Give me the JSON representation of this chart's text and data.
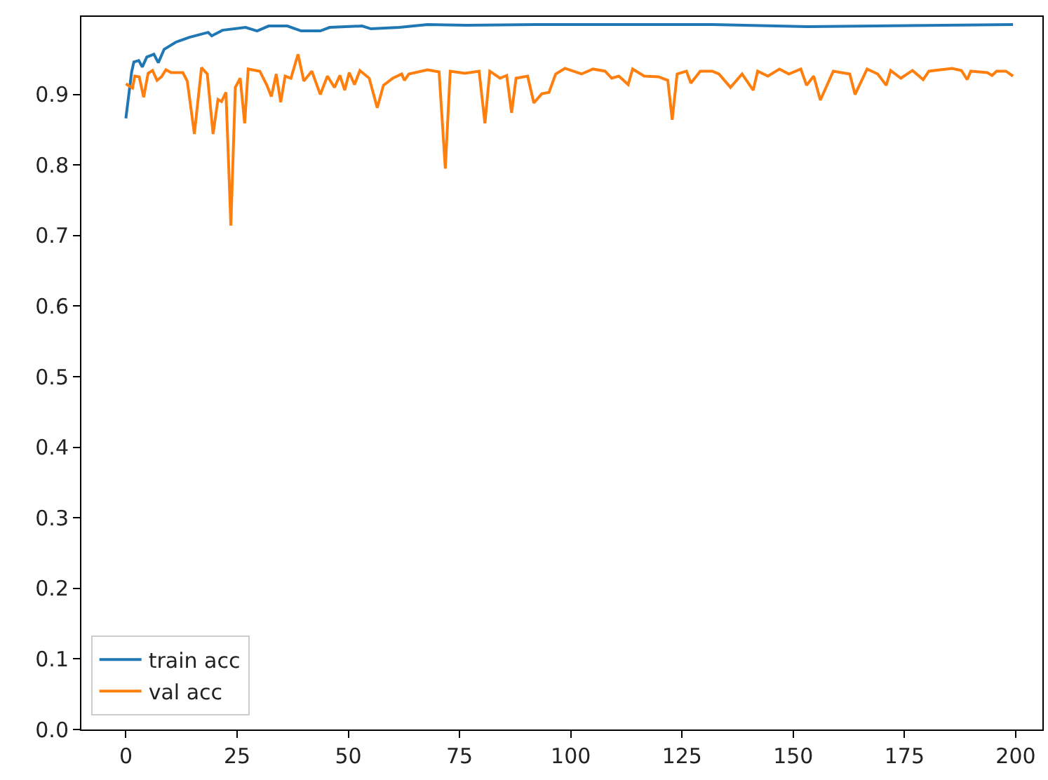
{
  "chart_data": {
    "type": "line",
    "xlim": [
      -10,
      206
    ],
    "ylim": [
      0,
      1.01
    ],
    "xticks": [
      0,
      25,
      50,
      75,
      100,
      125,
      150,
      175,
      200
    ],
    "yticks": [
      {
        "value": 0,
        "label": "0.0"
      },
      0.1,
      0.2,
      0.3,
      0.4,
      0.5,
      0.6,
      0.7,
      0.8,
      0.9
    ],
    "legend": "bottom left",
    "series": [
      {
        "name": "train acc",
        "color": "#1f77b4",
        "x": [
          0,
          1.3,
          1.8,
          2.9,
          3.7,
          4.7,
          6.3,
          7.3,
          8.6,
          11.2,
          14.3,
          18.5,
          19.3,
          21.7,
          26.9,
          29.5,
          32.1,
          36.3,
          39.4,
          43.7,
          45.8,
          53.1,
          55.1,
          61.5,
          67.8,
          76.5,
          92.2,
          131.8,
          153.2,
          199.4
        ],
        "values": [
          0.866,
          0.932,
          0.946,
          0.948,
          0.939,
          0.953,
          0.957,
          0.945,
          0.964,
          0.974,
          0.981,
          0.988,
          0.983,
          0.991,
          0.995,
          0.99,
          0.997,
          0.997,
          0.99,
          0.99,
          0.995,
          0.997,
          0.993,
          0.995,
          0.999,
          0.998,
          0.999,
          0.999,
          0.996,
          0.999
        ]
      },
      {
        "name": "val acc",
        "color": "#ff7f0e",
        "x": [
          0,
          1.5,
          2,
          3,
          4,
          5,
          6,
          7,
          8,
          9,
          10.2,
          12.8,
          13.8,
          15.4,
          17,
          18.3,
          19.6,
          20.7,
          21.5,
          22.5,
          23.6,
          24.6,
          25.7,
          26.7,
          27.5,
          30.1,
          31.7,
          32.7,
          33.8,
          34.8,
          35.8,
          37.1,
          38.7,
          40,
          41.8,
          43.7,
          45.3,
          46.9,
          48.1,
          49.2,
          50.2,
          51.4,
          52.6,
          54.7,
          56.5,
          57.9,
          60,
          62,
          62.6,
          63.6,
          67.8,
          70.4,
          71.8,
          72.9,
          76.2,
          79.4,
          80.7,
          81.8,
          84.1,
          85.6,
          86.7,
          87.7,
          90.3,
          91.7,
          93.5,
          95.1,
          96.6,
          98.7,
          102.4,
          105,
          107.7,
          109.2,
          110.8,
          112.9,
          113.9,
          116.5,
          119.7,
          121.8,
          122.8,
          123.9,
          126,
          127,
          129.1,
          131.8,
          133.3,
          135.9,
          138.5,
          141,
          142,
          144.3,
          146.9,
          149,
          151.7,
          153,
          154.6,
          156.1,
          159,
          162.7,
          163.9,
          166.6,
          169,
          170.9,
          171.9,
          174.2,
          176.8,
          179.2,
          180.5,
          185.7,
          187.8,
          189.1,
          189.9,
          193.6,
          194.7,
          195.7,
          197.8,
          199.4
        ],
        "values": [
          0.915,
          0.909,
          0.926,
          0.925,
          0.896,
          0.93,
          0.934,
          0.92,
          0.925,
          0.935,
          0.931,
          0.931,
          0.919,
          0.844,
          0.938,
          0.929,
          0.844,
          0.893,
          0.89,
          0.903,
          0.714,
          0.91,
          0.923,
          0.859,
          0.936,
          0.933,
          0.913,
          0.897,
          0.929,
          0.889,
          0.926,
          0.923,
          0.957,
          0.919,
          0.933,
          0.9,
          0.926,
          0.91,
          0.927,
          0.906,
          0.931,
          0.914,
          0.934,
          0.923,
          0.881,
          0.913,
          0.923,
          0.929,
          0.92,
          0.929,
          0.935,
          0.932,
          0.795,
          0.933,
          0.93,
          0.933,
          0.859,
          0.933,
          0.923,
          0.927,
          0.874,
          0.923,
          0.926,
          0.888,
          0.901,
          0.903,
          0.929,
          0.937,
          0.929,
          0.936,
          0.933,
          0.923,
          0.926,
          0.914,
          0.936,
          0.926,
          0.925,
          0.92,
          0.864,
          0.929,
          0.933,
          0.916,
          0.933,
          0.933,
          0.929,
          0.91,
          0.929,
          0.906,
          0.933,
          0.926,
          0.936,
          0.929,
          0.936,
          0.913,
          0.926,
          0.892,
          0.933,
          0.929,
          0.9,
          0.936,
          0.929,
          0.913,
          0.934,
          0.923,
          0.934,
          0.921,
          0.933,
          0.937,
          0.934,
          0.921,
          0.933,
          0.931,
          0.927,
          0.933,
          0.933,
          0.926
        ]
      }
    ]
  }
}
